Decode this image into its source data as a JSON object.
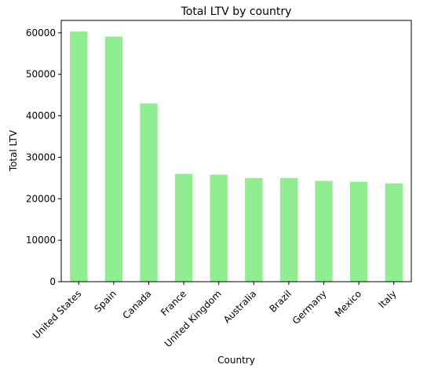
{
  "chart_data": {
    "type": "bar",
    "title": "Total LTV by country",
    "xlabel": "Country",
    "ylabel": "Total LTV",
    "categories": [
      "United States",
      "Spain",
      "Canada",
      "France",
      "United Kingdom",
      "Australia",
      "Brazil",
      "Germany",
      "Mexico",
      "Italy"
    ],
    "values": [
      60300,
      59100,
      43000,
      26000,
      25800,
      25000,
      25000,
      24300,
      24100,
      23700
    ],
    "ylim": [
      0,
      63000
    ],
    "yticks": [
      0,
      10000,
      20000,
      30000,
      40000,
      50000,
      60000
    ],
    "bar_color": "#90ee90",
    "grid": false,
    "legend": "none"
  }
}
